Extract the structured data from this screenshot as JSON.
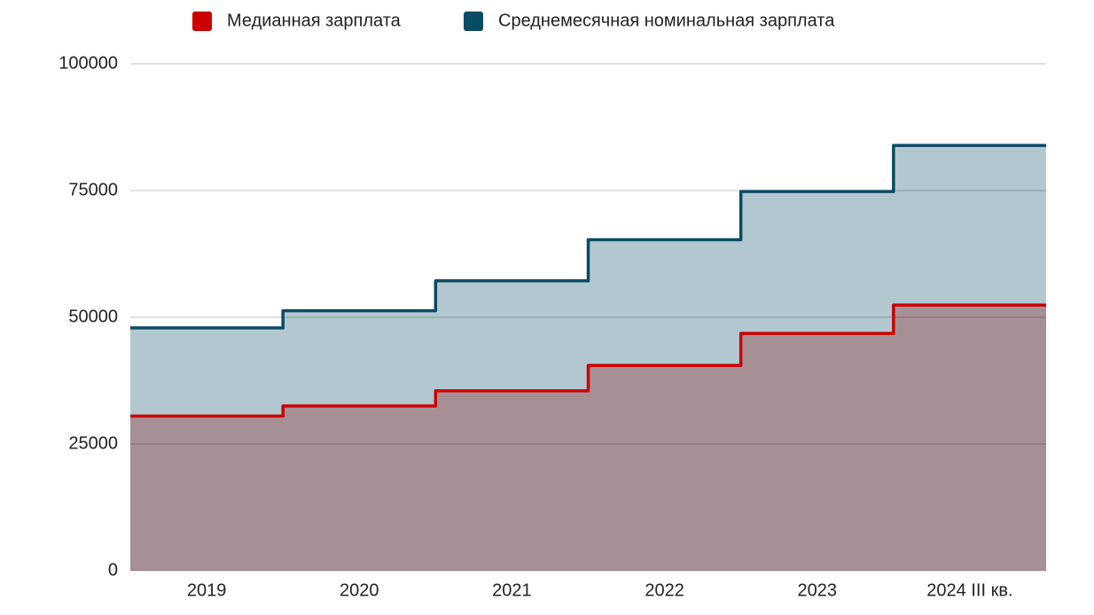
{
  "chart_data": {
    "type": "step-area",
    "categories": [
      "2019",
      "2020",
      "2021",
      "2022",
      "2023",
      "2024 III кв."
    ],
    "series": [
      {
        "name": "Медианная зарплата",
        "color": "#cc0000",
        "fill": "#a69096",
        "values": [
          30500,
          32500,
          35500,
          40500,
          46800,
          52400
        ]
      },
      {
        "name": "Среднемесячная номинальная зарплата",
        "color": "#0b4a63",
        "fill": "#b3c7d0",
        "values": [
          47900,
          51300,
          57200,
          65300,
          74800,
          83900
        ]
      }
    ],
    "ylim": [
      0,
      100000
    ],
    "yticks": [
      0,
      25000,
      50000,
      75000,
      100000
    ],
    "grid": true,
    "legend": "top"
  }
}
